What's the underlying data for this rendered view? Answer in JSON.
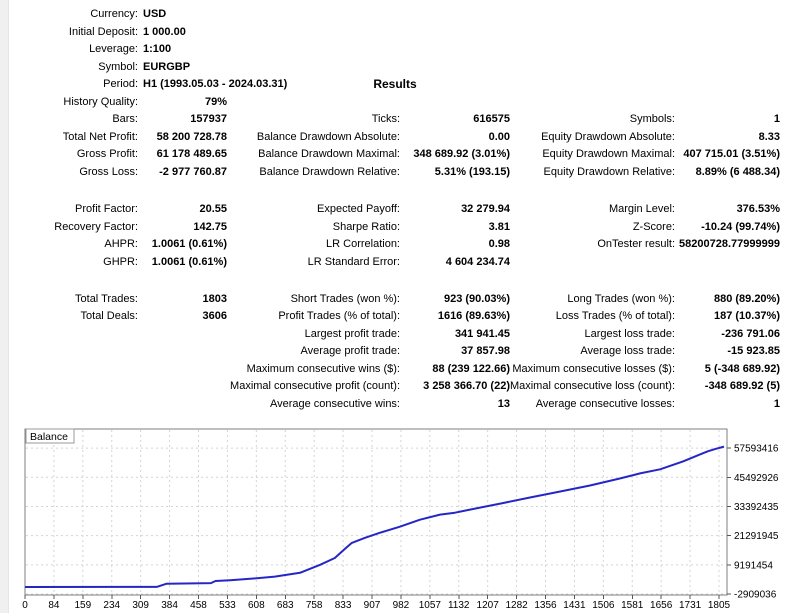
{
  "report": {
    "info_rows": [
      {
        "label": "Currency:",
        "value": "USD"
      },
      {
        "label": "Initial Deposit:",
        "value": "1 000.00"
      },
      {
        "label": "Leverage:",
        "value": "1:100"
      },
      {
        "label": "Symbol:",
        "value": "EURGBP"
      },
      {
        "label": "Period:",
        "value": "H1 (1993.05.03 - 2024.03.31)"
      }
    ],
    "results_title": "Results",
    "stats_rows": [
      {
        "cells": [
          "History Quality:",
          "79%",
          "",
          "",
          "",
          ""
        ]
      },
      {
        "cells": [
          "Bars:",
          "157937",
          "Ticks:",
          "616575",
          "Symbols:",
          "1"
        ]
      },
      {
        "cells": [
          "Total Net Profit:",
          "58 200 728.78",
          "Balance Drawdown Absolute:",
          "0.00",
          "Equity Drawdown Absolute:",
          "8.33"
        ]
      },
      {
        "cells": [
          "Gross Profit:",
          "61 178 489.65",
          "Balance Drawdown Maximal:",
          "348 689.92 (3.01%)",
          "Equity Drawdown Maximal:",
          "407 715.01 (3.51%)"
        ]
      },
      {
        "cells": [
          "Gross Loss:",
          "-2 977 760.87",
          "Balance Drawdown Relative:",
          "5.31% (193.15)",
          "Equity Drawdown Relative:",
          "8.89% (6 488.34)"
        ]
      },
      {
        "cells": [
          "Profit Factor:",
          "20.55",
          "Expected Payoff:",
          "32 279.94",
          "Margin Level:",
          "376.53%"
        ]
      },
      {
        "cells": [
          "Recovery Factor:",
          "142.75",
          "Sharpe Ratio:",
          "3.81",
          "Z-Score:",
          "-10.24 (99.74%)"
        ]
      },
      {
        "cells": [
          "AHPR:",
          "1.0061 (0.61%)",
          "LR Correlation:",
          "0.98",
          "OnTester result:",
          "58200728.77999999"
        ]
      },
      {
        "cells": [
          "GHPR:",
          "1.0061 (0.61%)",
          "LR Standard Error:",
          "4 604 234.74",
          "",
          ""
        ]
      },
      {
        "cells": [
          "Total Trades:",
          "1803",
          "Short Trades (won %):",
          "923 (90.03%)",
          "Long Trades (won %):",
          "880 (89.20%)"
        ]
      },
      {
        "cells": [
          "Total Deals:",
          "3606",
          "Profit Trades (% of total):",
          "1616 (89.63%)",
          "Loss Trades (% of total):",
          "187 (10.37%)"
        ]
      },
      {
        "cells": [
          "",
          "",
          "Largest profit trade:",
          "341 941.45",
          "Largest loss trade:",
          "-236 791.06"
        ]
      },
      {
        "cells": [
          "",
          "",
          "Average profit trade:",
          "37 857.98",
          "Average loss trade:",
          "-15 923.85"
        ]
      },
      {
        "cells": [
          "",
          "",
          "Maximum consecutive wins ($):",
          "88 (239 122.66)",
          "Maximum consecutive losses ($):",
          "5 (-348 689.92)"
        ]
      },
      {
        "cells": [
          "",
          "",
          "Maximal consecutive profit (count):",
          "3 258 366.70 (22)",
          "Maximal consecutive loss (count):",
          "-348 689.92 (5)"
        ]
      },
      {
        "cells": [
          "",
          "",
          "Average consecutive wins:",
          "13",
          "Average consecutive losses:",
          "1"
        ]
      }
    ]
  },
  "chart_data": {
    "type": "line",
    "title": "Balance",
    "legend_label": "Balance",
    "line_color": "#2626c6",
    "grid_color": "#d4d4d4",
    "frame_color": "#7f7f7f",
    "xlim": [
      0,
      1805
    ],
    "ylim": [
      -3326000,
      65520000
    ],
    "x_ticks": [
      0,
      84,
      159,
      234,
      309,
      384,
      458,
      533,
      608,
      683,
      758,
      833,
      907,
      982,
      1057,
      1132,
      1207,
      1282,
      1356,
      1431,
      1506,
      1581,
      1656,
      1731,
      1805
    ],
    "y_ticks": [
      57593416,
      45492926,
      33392435,
      21291945,
      9191454,
      -2909036
    ],
    "series": [
      {
        "name": "Balance",
        "points": [
          [
            0,
            1000
          ],
          [
            340,
            50000
          ],
          [
            365,
            1300000
          ],
          [
            480,
            1600000
          ],
          [
            492,
            2500000
          ],
          [
            530,
            2800000
          ],
          [
            590,
            3500000
          ],
          [
            645,
            4300000
          ],
          [
            710,
            5900000
          ],
          [
            762,
            9200000
          ],
          [
            800,
            12000000
          ],
          [
            826,
            15800000
          ],
          [
            844,
            18300000
          ],
          [
            878,
            20400000
          ],
          [
            917,
            22500000
          ],
          [
            968,
            25000000
          ],
          [
            1020,
            27900000
          ],
          [
            1072,
            30000000
          ],
          [
            1110,
            30800000
          ],
          [
            1149,
            32100000
          ],
          [
            1227,
            34600000
          ],
          [
            1304,
            37100000
          ],
          [
            1382,
            39600000
          ],
          [
            1459,
            42100000
          ],
          [
            1536,
            45000000
          ],
          [
            1588,
            47100000
          ],
          [
            1640,
            48800000
          ],
          [
            1699,
            52100000
          ],
          [
            1743,
            55000000
          ],
          [
            1764,
            56300000
          ],
          [
            1784,
            57300000
          ],
          [
            1805,
            58201729
          ]
        ]
      }
    ]
  }
}
